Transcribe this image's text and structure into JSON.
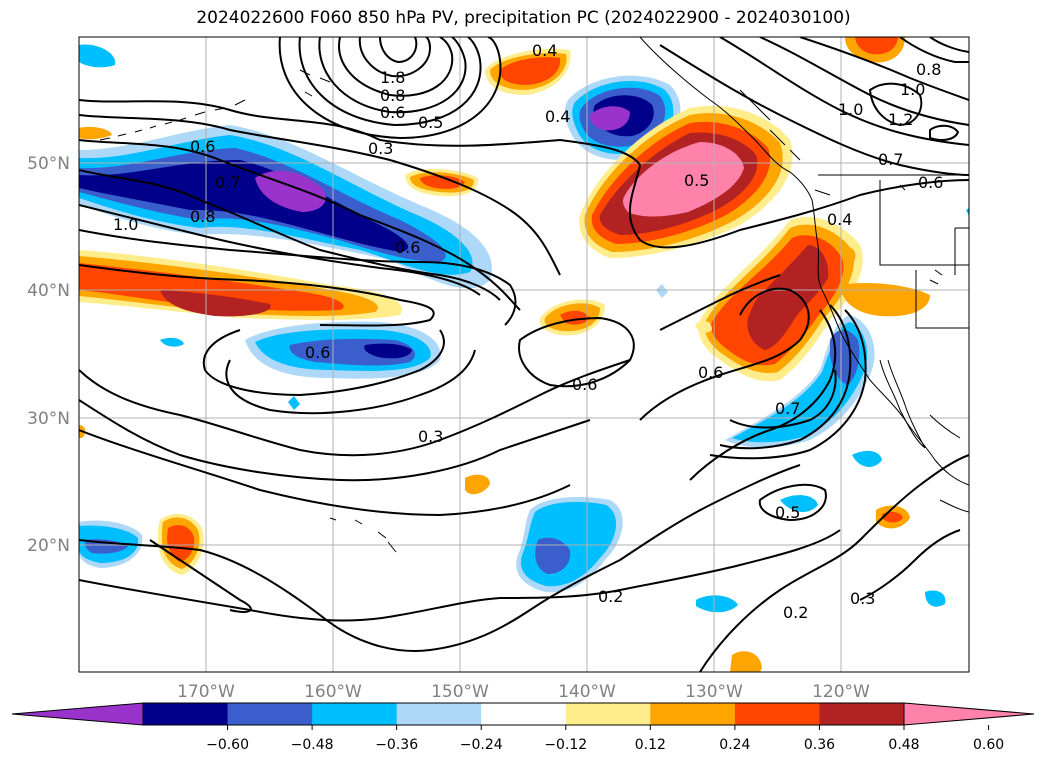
{
  "title": "2024022600 F060 850 hPa PV, precipitation PC (2024022900 - 2024030100)",
  "lat_labels": [
    "50°N",
    "40°N",
    "30°N",
    "20°N"
  ],
  "lon_labels": [
    "170°W",
    "160°W",
    "150°W",
    "140°W",
    "130°W",
    "120°W"
  ],
  "contour_labels": [
    "0.4",
    "1.8",
    "0.8",
    "0.6",
    "0.5",
    "0.3",
    "0.6",
    "0.7",
    "0.8",
    "1.0",
    "0.6",
    "0.4",
    "0.5",
    "0.4",
    "1.0",
    "1.2",
    "0.8",
    "1.0",
    "0.7",
    "0.6",
    "0.6",
    "0.6",
    "0.6",
    "0.7",
    "0.3",
    "0.5",
    "0.2",
    "0.2",
    "0.3"
  ],
  "colorbar": {
    "colors": [
      "#9933cc",
      "#00008b",
      "#3a5fcd",
      "#00bfff",
      "#add8f7",
      "#ffffff",
      "#ffec8b",
      "#ffa500",
      "#ff4500",
      "#b22222",
      "#ff82ab"
    ],
    "ticks": [
      "−0.60",
      "−0.48",
      "−0.36",
      "−0.24",
      "−0.12",
      "0.12",
      "0.24",
      "0.36",
      "0.48",
      "0.60"
    ]
  },
  "colors": {
    "purple": "#9933cc",
    "navy": "#00008b",
    "blue": "#3a5fcd",
    "sky": "#00bfff",
    "pale_blue": "#add8f7",
    "yellow": "#ffec8b",
    "orange": "#ffa500",
    "red_orange": "#ff4500",
    "firebrick": "#b22222",
    "pink": "#ff82ab"
  }
}
